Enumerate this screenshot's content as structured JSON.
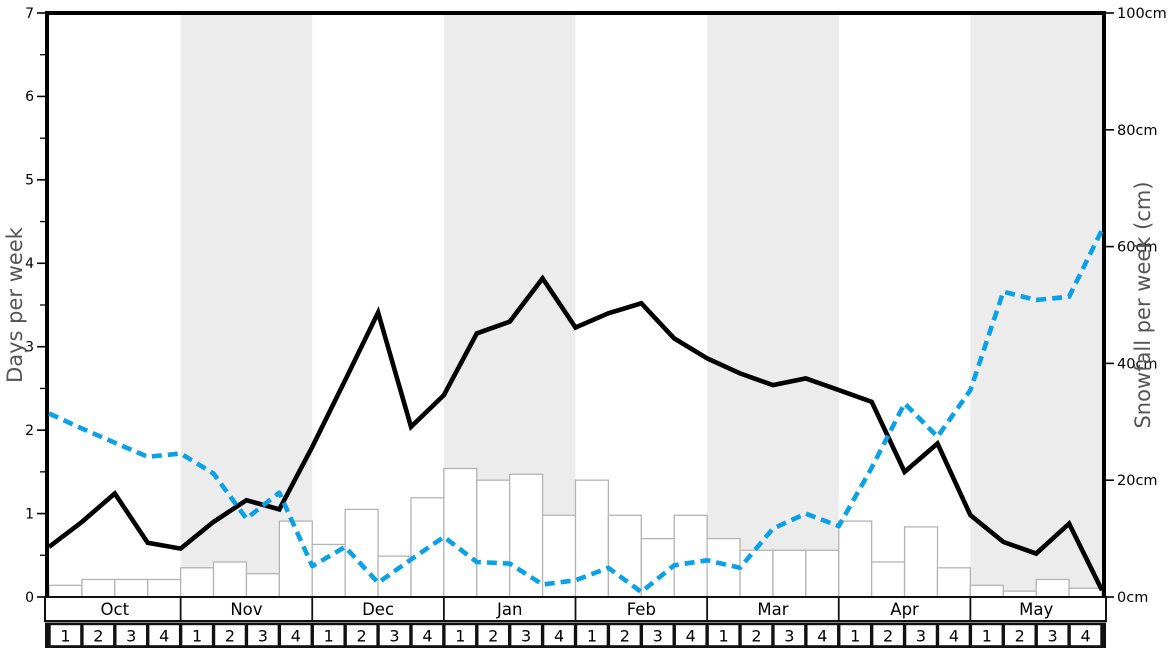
{
  "chart_data": {
    "type": "bar+line",
    "months": [
      "Oct",
      "Nov",
      "Dec",
      "Jan",
      "Feb",
      "Mar",
      "Apr",
      "May"
    ],
    "week_labels": [
      "1",
      "2",
      "3",
      "4"
    ],
    "weeks_per_month": 4,
    "shaded_month_indices": [
      1,
      3,
      5,
      7
    ],
    "left_axis": {
      "title": "Days per week",
      "min": 0,
      "max": 7,
      "major_ticks": [
        0,
        1,
        2,
        3,
        4,
        5,
        6,
        7
      ],
      "minor_tick_step": 0.5
    },
    "right_axis": {
      "title": "Snowfall per week (cm)",
      "min": 0,
      "max": 100,
      "major_ticks": [
        0,
        20,
        40,
        60,
        80,
        100
      ],
      "tick_suffix": "cm"
    },
    "bars": {
      "id": "snowfall-bars",
      "axis": "right",
      "unit": "cm",
      "values": [
        2,
        3,
        3,
        3,
        5,
        6,
        4,
        13,
        9,
        15,
        7,
        17,
        22,
        20,
        21,
        14,
        20,
        14,
        10,
        14,
        10,
        8,
        8,
        8,
        13,
        6,
        12,
        5,
        2,
        1,
        3,
        1.5
      ]
    },
    "lines": [
      {
        "id": "black-solid-line",
        "axis": "left",
        "style": "solid",
        "color": "#000000",
        "x_mode": "week-boundaries",
        "values": [
          0.6,
          0.9,
          1.24,
          0.65,
          0.58,
          0.9,
          1.16,
          1.05,
          1.8,
          2.6,
          3.41,
          2.04,
          2.42,
          3.16,
          3.3,
          3.82,
          3.23,
          3.4,
          3.52,
          3.1,
          2.86,
          2.68,
          2.54,
          2.62,
          2.48,
          2.34,
          1.5,
          1.84,
          0.98,
          0.66,
          0.52,
          0.88,
          0.08
        ]
      },
      {
        "id": "blue-dashed-line",
        "axis": "left",
        "style": "dashed",
        "color": "#0aa1e6",
        "x_mode": "week-boundaries",
        "values": [
          2.2,
          2.02,
          1.85,
          1.68,
          1.72,
          1.48,
          0.94,
          1.25,
          0.37,
          0.6,
          0.17,
          0.45,
          0.72,
          0.42,
          0.4,
          0.15,
          0.2,
          0.35,
          0.06,
          0.38,
          0.44,
          0.35,
          0.82,
          1.0,
          0.85,
          1.55,
          2.32,
          1.92,
          2.48,
          3.66,
          3.56,
          3.6,
          4.4
        ]
      }
    ],
    "colors": {
      "band": "#ececec",
      "bar_fill": "#ffffff",
      "bar_edge": "#b4b4b4",
      "table_border": "#111111",
      "axis_title": "#555555",
      "tick_label": "#000000"
    }
  }
}
